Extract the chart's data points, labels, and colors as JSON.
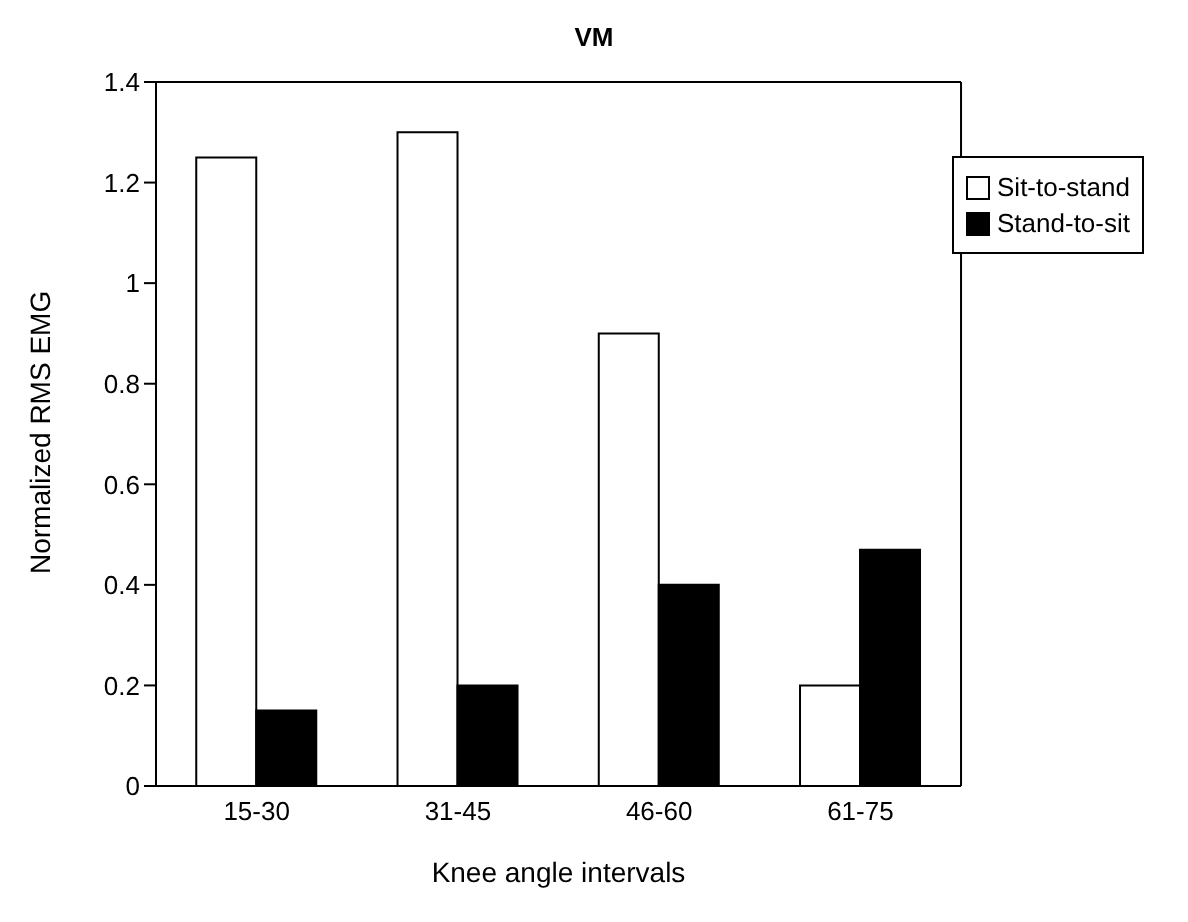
{
  "chart_data": {
    "type": "bar",
    "title": "VM",
    "xlabel": "Knee angle intervals",
    "ylabel": "Normalized RMS EMG",
    "categories": [
      "15-30",
      "31-45",
      "46-60",
      "61-75"
    ],
    "series": [
      {
        "name": "Sit-to-stand",
        "color": "#ffffff",
        "values": [
          1.25,
          1.3,
          0.9,
          0.2
        ]
      },
      {
        "name": "Stand-to-sit",
        "color": "#000000",
        "values": [
          0.15,
          0.2,
          0.4,
          0.47
        ]
      }
    ],
    "ylim": [
      0,
      1.4
    ],
    "yticks": [
      0,
      0.2,
      0.4,
      0.6,
      0.8,
      1,
      1.2,
      1.4
    ],
    "grid": false,
    "legend": "top right"
  }
}
